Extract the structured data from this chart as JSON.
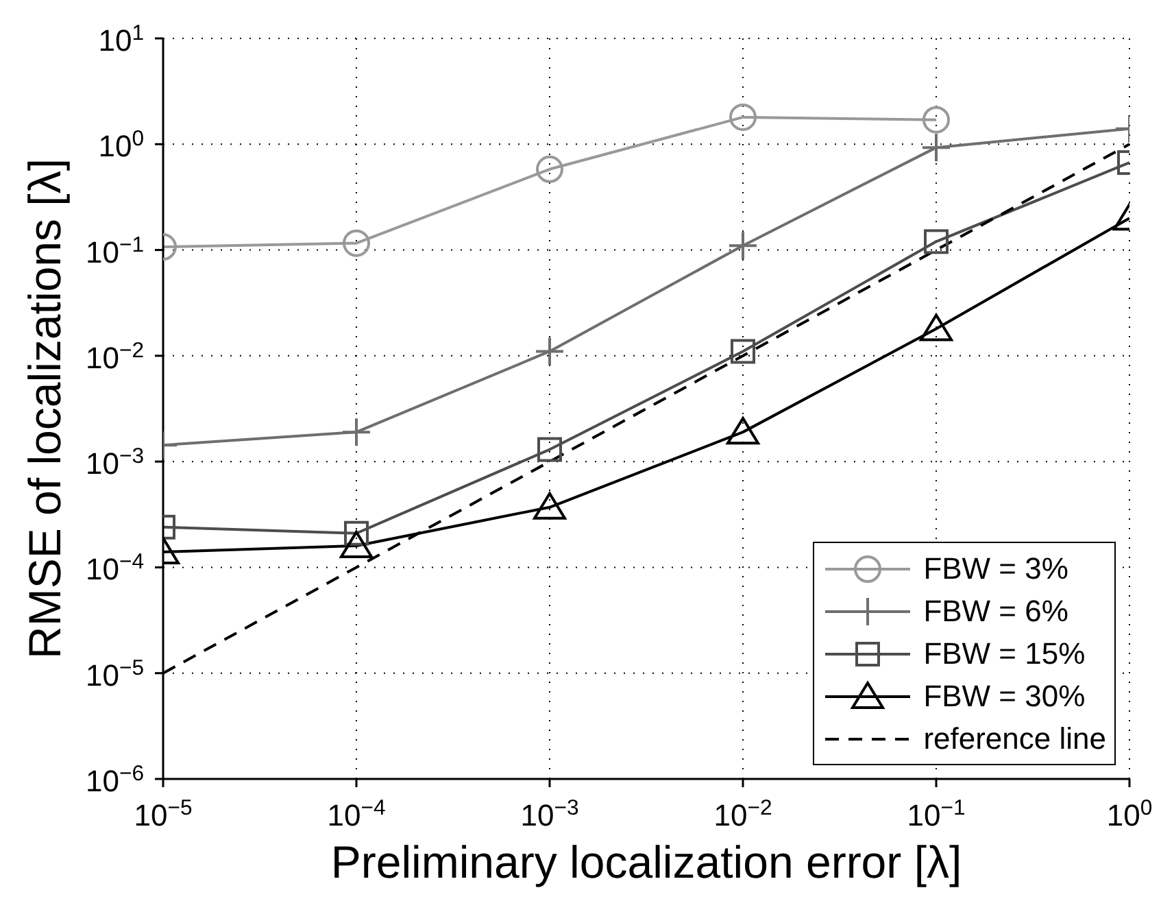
{
  "chart_data": {
    "type": "line",
    "xlabel": "Preliminary localization error [λ]",
    "ylabel": "RMSE of localizations [λ]",
    "log": "xy",
    "xlim": [
      1e-05,
      1
    ],
    "ylim": [
      1e-06,
      10
    ],
    "xticks": [
      {
        "value": 1e-05,
        "label": "10$^{−5}$"
      },
      {
        "value": 0.0001,
        "label": "10$^{−4}$"
      },
      {
        "value": 0.001,
        "label": "10$^{−3}$"
      },
      {
        "value": 0.01,
        "label": "10$^{−2}$"
      },
      {
        "value": 0.1,
        "label": "10$^{−1}$"
      },
      {
        "value": 1,
        "label": "10$^{0}$"
      }
    ],
    "yticks": [
      {
        "value": 1e-06,
        "label": "10$^{−6}$"
      },
      {
        "value": 1e-05,
        "label": "10$^{−5}$"
      },
      {
        "value": 0.0001,
        "label": "10$^{−4}$"
      },
      {
        "value": 0.001,
        "label": "10$^{−3}$"
      },
      {
        "value": 0.01,
        "label": "10$^{−2}$"
      },
      {
        "value": 0.1,
        "label": "10$^{−1}$"
      },
      {
        "value": 1,
        "label": "10$^{0}$"
      },
      {
        "value": 10,
        "label": "10$^{1}$"
      }
    ],
    "grid": true,
    "legend": "bottom right",
    "series": [
      {
        "name": "FBW = 3%",
        "color": "#999999",
        "marker": "circle",
        "x": [
          1e-05,
          0.0001,
          0.001,
          0.01,
          0.1
        ],
        "values": [
          0.107,
          0.116,
          0.58,
          1.8,
          1.7
        ]
      },
      {
        "name": "FBW = 6%",
        "color": "#6e6e6e",
        "marker": "cross",
        "x": [
          1e-05,
          0.0001,
          0.001,
          0.01,
          0.1,
          1
        ],
        "values": [
          0.00143,
          0.0019,
          0.011,
          0.11,
          0.93,
          1.4
        ]
      },
      {
        "name": "FBW = 15%",
        "color": "#4d4d4d",
        "marker": "square",
        "x": [
          1e-05,
          0.0001,
          0.001,
          0.01,
          0.1,
          1
        ],
        "values": [
          0.00024,
          0.00021,
          0.0013,
          0.011,
          0.12,
          0.67
        ]
      },
      {
        "name": "FBW = 30%",
        "color": "#000000",
        "marker": "triangle",
        "x": [
          1e-05,
          0.0001,
          0.001,
          0.01,
          0.1,
          1
        ],
        "values": [
          0.00014,
          0.00016,
          0.00037,
          0.0019,
          0.018,
          0.2
        ]
      },
      {
        "name": "reference line",
        "color": "#000000",
        "marker": "none",
        "line_style": "dashed",
        "x": [
          1e-05,
          1
        ],
        "values": [
          1e-05,
          1
        ]
      }
    ]
  }
}
